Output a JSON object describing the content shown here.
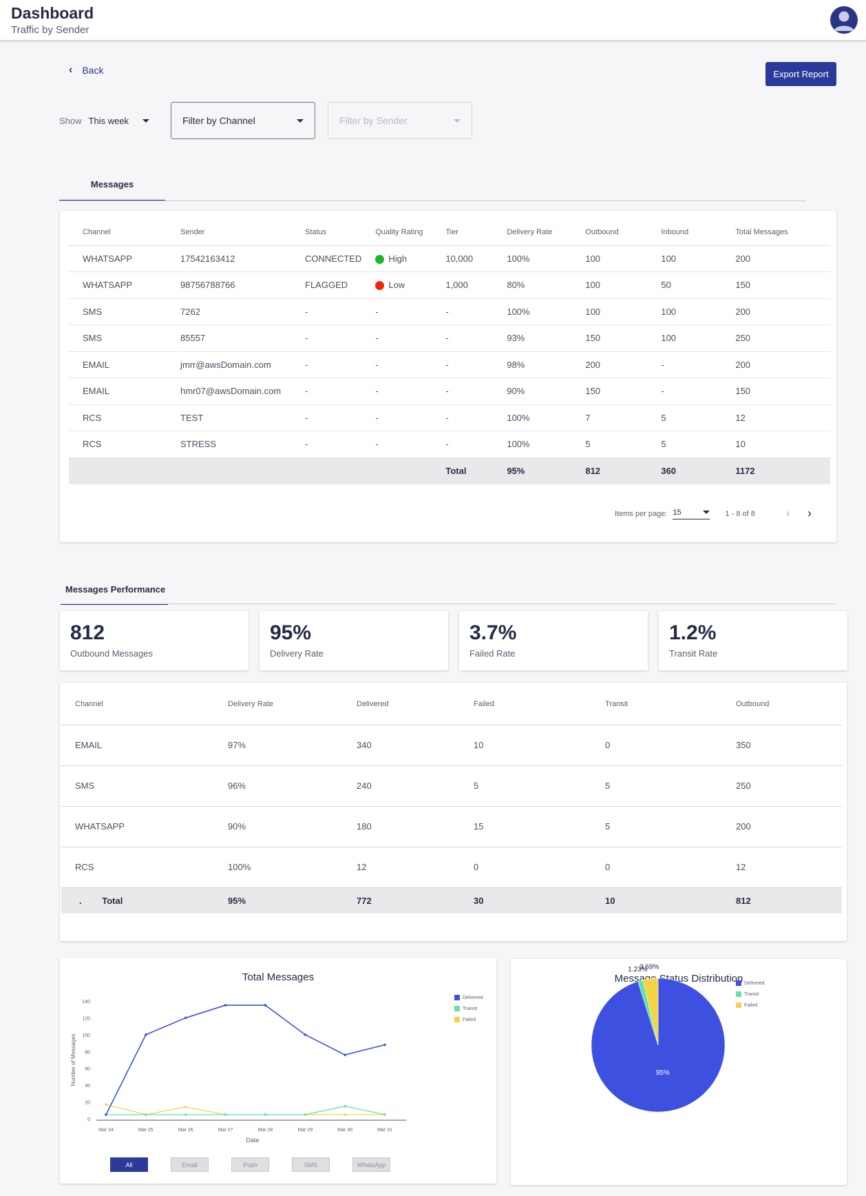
{
  "header": {
    "title": "Dashboard",
    "subtitle": "Traffic by Sender"
  },
  "nav": {
    "back_label": "Back",
    "export_label": "Export Report"
  },
  "filters": {
    "show_label": "Show",
    "show_value": "This week",
    "channel_placeholder": "Filter by Channel",
    "sender_placeholder": "Filter by Sender"
  },
  "messages_tab": "Messages",
  "messages_table": {
    "headers": [
      "Channel",
      "Sender",
      "Status",
      "Quality Rating",
      "Tier",
      "Delivery Rate",
      "Outbound",
      "Inbound",
      "Total Messages"
    ],
    "rows": [
      [
        "WHATSAPP",
        "17542163412",
        "CONNECTED",
        "High",
        "10,000",
        "100%",
        "100",
        "100",
        "200"
      ],
      [
        "WHATSAPP",
        "98756788766",
        "FLAGGED",
        "Low",
        "1,000",
        "80%",
        "100",
        "50",
        "150"
      ],
      [
        "SMS",
        "7262",
        "-",
        "-",
        "-",
        "100%",
        "100",
        "100",
        "200"
      ],
      [
        "SMS",
        "85557",
        "-",
        "-",
        "-",
        "93%",
        "150",
        "100",
        "250"
      ],
      [
        "EMAIL",
        "jmrr@awsDomain.com",
        "-",
        "-",
        "-",
        "98%",
        "200",
        "-",
        "200"
      ],
      [
        "EMAIL",
        "hmr07@awsDomain.com",
        "-",
        "-",
        "-",
        "90%",
        "150",
        "-",
        "150"
      ],
      [
        "RCS",
        "TEST",
        "-",
        "-",
        "-",
        "100%",
        "7",
        "5",
        "12"
      ],
      [
        "RCS",
        "STRESS",
        "-",
        "-",
        "-",
        "100%",
        "5",
        "5",
        "10"
      ]
    ],
    "total": {
      "label": "Total",
      "delivery_rate": "95%",
      "outbound": "812",
      "inbound": "360",
      "total_messages": "1172"
    },
    "quality_colors": {
      "High": "#1fb523",
      "Low": "#f0230f"
    }
  },
  "pagination": {
    "items_per_page_label": "Items per page:",
    "items_per_page": "15",
    "range": "1 - 8 of 8"
  },
  "performance_tab": "Messages Performance",
  "stats": [
    {
      "value": "812",
      "label": "Outbound Messages"
    },
    {
      "value": "95%",
      "label": "Delivery Rate"
    },
    {
      "value": "3.7%",
      "label": "Failed Rate"
    },
    {
      "value": "1.2%",
      "label": "Transit Rate"
    }
  ],
  "performance_table": {
    "headers": [
      "Channel",
      "Delivery Rate",
      "Delivered",
      "Failed",
      "Transit",
      "Outbound"
    ],
    "rows": [
      [
        "EMAIL",
        "97%",
        "340",
        "10",
        "0",
        "350"
      ],
      [
        "SMS",
        "96%",
        "240",
        "5",
        "5",
        "250"
      ],
      [
        "WHATSAPP",
        "90%",
        "180",
        "15",
        "5",
        "200"
      ],
      [
        "RCS",
        "100%",
        "12",
        "0",
        "0",
        "12"
      ]
    ],
    "total": {
      "dot": ".",
      "label": "Total",
      "delivery_rate": "95%",
      "delivered": "772",
      "failed": "30",
      "transit": "10",
      "outbound": "812"
    }
  },
  "chart_data": [
    {
      "type": "line",
      "title": "Total Messages",
      "xlabel": "Date",
      "ylabel": "Number of Messages",
      "categories": [
        "Mar 24",
        "Mar 25",
        "Mar 26",
        "Mar 27",
        "Mar 28",
        "Mar 29",
        "Mar 30",
        "Mar 31"
      ],
      "ylim": [
        0,
        140
      ],
      "yticks": [
        0,
        20,
        40,
        60,
        80,
        100,
        120,
        140
      ],
      "series": [
        {
          "name": "Delivered",
          "color": "#3d50e0",
          "values": [
            5,
            100,
            120,
            135,
            135,
            100,
            76,
            88
          ]
        },
        {
          "name": "Transit",
          "color": "#5fe3a8",
          "values": [
            5,
            5,
            5,
            5,
            5,
            5,
            15,
            5
          ]
        },
        {
          "name": "Failed",
          "color": "#f5d346",
          "values": [
            17,
            5,
            14,
            5,
            5,
            5,
            5,
            5
          ]
        }
      ],
      "filters": [
        "All",
        "Email",
        "Push",
        "SMS",
        "WhatsApp"
      ],
      "active_filter": "All"
    },
    {
      "type": "pie",
      "title": "Message Status Distribution",
      "slices": [
        {
          "name": "Delivered",
          "value": 95,
          "label": "95%",
          "color": "#3d50e0"
        },
        {
          "name": "Transit",
          "value": 1.23,
          "label": "1.23%",
          "color": "#5fe3a8"
        },
        {
          "name": "Failed",
          "value": 3.69,
          "label": "3.69%",
          "color": "#f5d346"
        }
      ]
    }
  ]
}
